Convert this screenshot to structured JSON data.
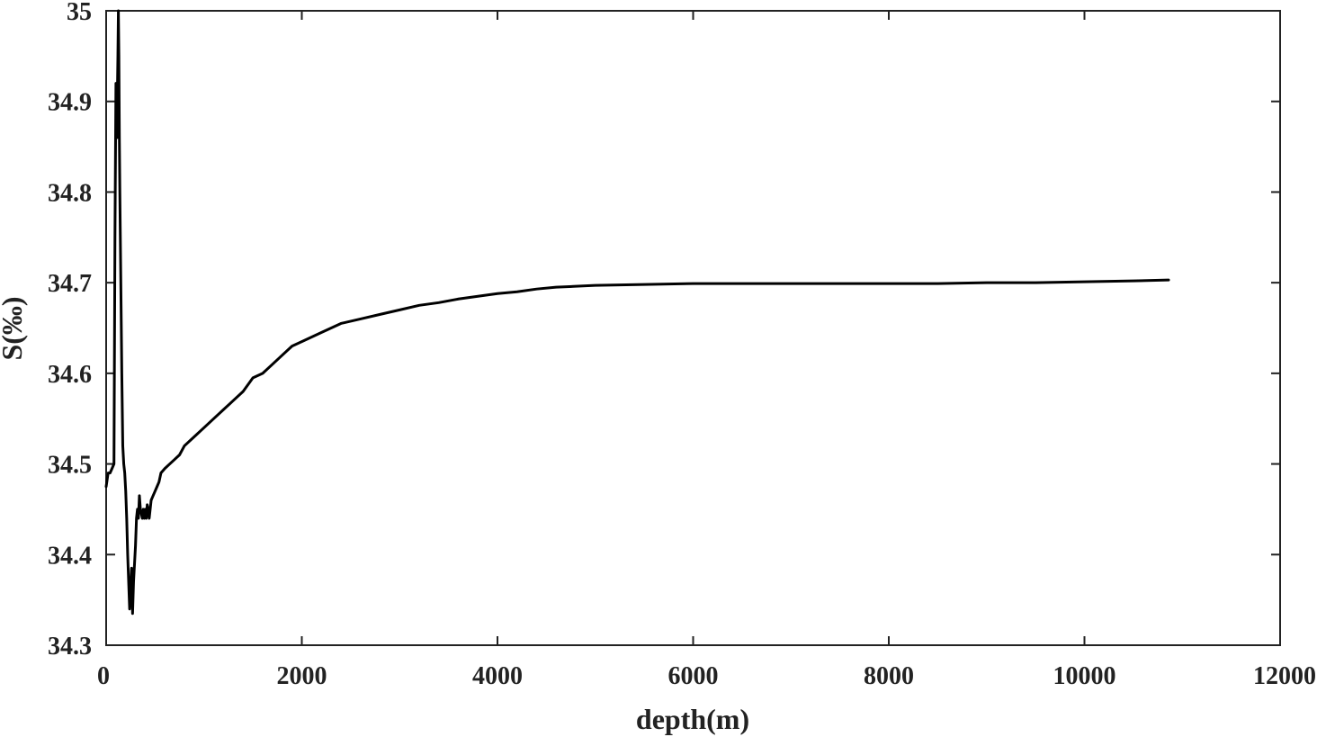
{
  "chart_data": {
    "type": "line",
    "title": "",
    "xlabel": "depth(m)",
    "ylabel": "S(‰)",
    "xlim": [
      0,
      12000
    ],
    "ylim": [
      34.3,
      35.0
    ],
    "xticks": [
      0,
      2000,
      4000,
      6000,
      8000,
      10000,
      12000
    ],
    "yticks": [
      34.3,
      34.4,
      34.5,
      34.6,
      34.7,
      34.8,
      34.9,
      35.0
    ],
    "xtick_labels": [
      "0",
      "2000",
      "4000",
      "6000",
      "8000",
      "10000",
      "12000"
    ],
    "ytick_labels": [
      "34.3",
      "34.4",
      "34.5",
      "34.6",
      "34.7",
      "34.8",
      "34.9",
      "35"
    ],
    "grid": false,
    "line_color": "#000000",
    "series": [
      {
        "x": [
          0,
          20,
          40,
          60,
          80,
          90,
          100,
          110,
          115,
          120,
          125,
          130,
          135,
          140,
          150,
          160,
          170,
          180,
          190,
          200,
          210,
          220,
          240,
          260,
          270,
          280,
          290,
          300,
          310,
          320,
          330,
          340,
          350,
          360,
          370,
          380,
          390,
          400,
          410,
          420,
          430,
          440,
          460,
          480,
          500,
          520,
          540,
          560,
          600,
          650,
          700,
          750,
          800,
          900,
          1000,
          1100,
          1200,
          1300,
          1400,
          1500,
          1600,
          1700,
          1800,
          1900,
          2000,
          2200,
          2400,
          2600,
          2800,
          3000,
          3200,
          3400,
          3600,
          3800,
          4000,
          4200,
          4400,
          4600,
          4800,
          5000,
          5500,
          6000,
          6500,
          7000,
          7500,
          8000,
          8500,
          9000,
          9500,
          10000,
          10500,
          10860
        ],
        "y": [
          34.475,
          34.49,
          34.49,
          34.495,
          34.5,
          34.75,
          34.92,
          34.86,
          34.91,
          34.95,
          35.0,
          34.95,
          34.86,
          34.8,
          34.7,
          34.6,
          34.52,
          34.5,
          34.49,
          34.47,
          34.44,
          34.4,
          34.34,
          34.385,
          34.335,
          34.37,
          34.39,
          34.41,
          34.44,
          34.45,
          34.44,
          34.465,
          34.45,
          34.445,
          34.44,
          34.45,
          34.44,
          34.45,
          34.44,
          34.455,
          34.45,
          34.44,
          34.46,
          34.465,
          34.47,
          34.475,
          34.48,
          34.49,
          34.495,
          34.5,
          34.505,
          34.51,
          34.52,
          34.53,
          34.54,
          34.55,
          34.56,
          34.57,
          34.58,
          34.595,
          34.6,
          34.61,
          34.62,
          34.63,
          34.635,
          34.645,
          34.655,
          34.66,
          34.665,
          34.67,
          34.675,
          34.678,
          34.682,
          34.685,
          34.688,
          34.69,
          34.693,
          34.695,
          34.696,
          34.697,
          34.698,
          34.699,
          34.699,
          34.699,
          34.699,
          34.699,
          34.699,
          34.7,
          34.7,
          34.701,
          34.702,
          34.703
        ]
      }
    ]
  }
}
